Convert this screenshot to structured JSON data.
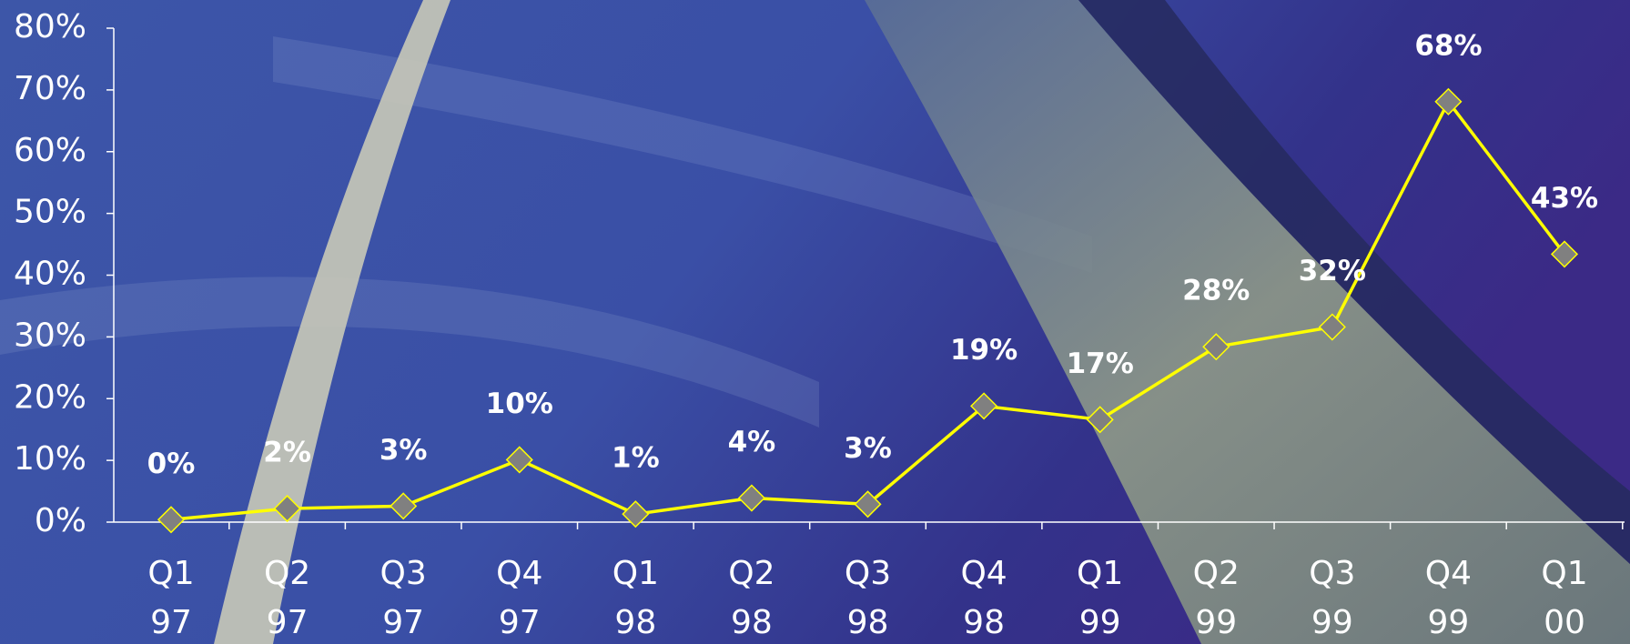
{
  "chart_data": {
    "type": "line",
    "categories": [
      "Q1 97",
      "Q2 97",
      "Q3 97",
      "Q4 97",
      "Q1 98",
      "Q2 98",
      "Q3 98",
      "Q4 98",
      "Q1 99",
      "Q2 99",
      "Q3 99",
      "Q4 99",
      "Q1 00"
    ],
    "values": [
      0.4,
      2.2,
      2.6,
      10.1,
      1.3,
      3.9,
      2.9,
      18.8,
      16.6,
      28.4,
      31.6,
      68.1,
      43.4
    ],
    "value_labels": [
      "0%",
      "2%",
      "3%",
      "10%",
      "1%",
      "4%",
      "3%",
      "19%",
      "17%",
      "28%",
      "32%",
      "68%",
      "43%"
    ],
    "color": "#ffff00",
    "marker_color": "#808080",
    "ylim": [
      0,
      80
    ],
    "yticks": [
      {
        "value": 0,
        "label": "0%"
      },
      {
        "value": 10,
        "label": "10%"
      },
      {
        "value": 20,
        "label": "20%"
      },
      {
        "value": 30,
        "label": "30%"
      },
      {
        "value": 40,
        "label": "40%"
      },
      {
        "value": 50,
        "label": "50%"
      },
      {
        "value": 60,
        "label": "60%"
      },
      {
        "value": 70,
        "label": "70%"
      },
      {
        "value": 80,
        "label": "80%"
      }
    ]
  }
}
